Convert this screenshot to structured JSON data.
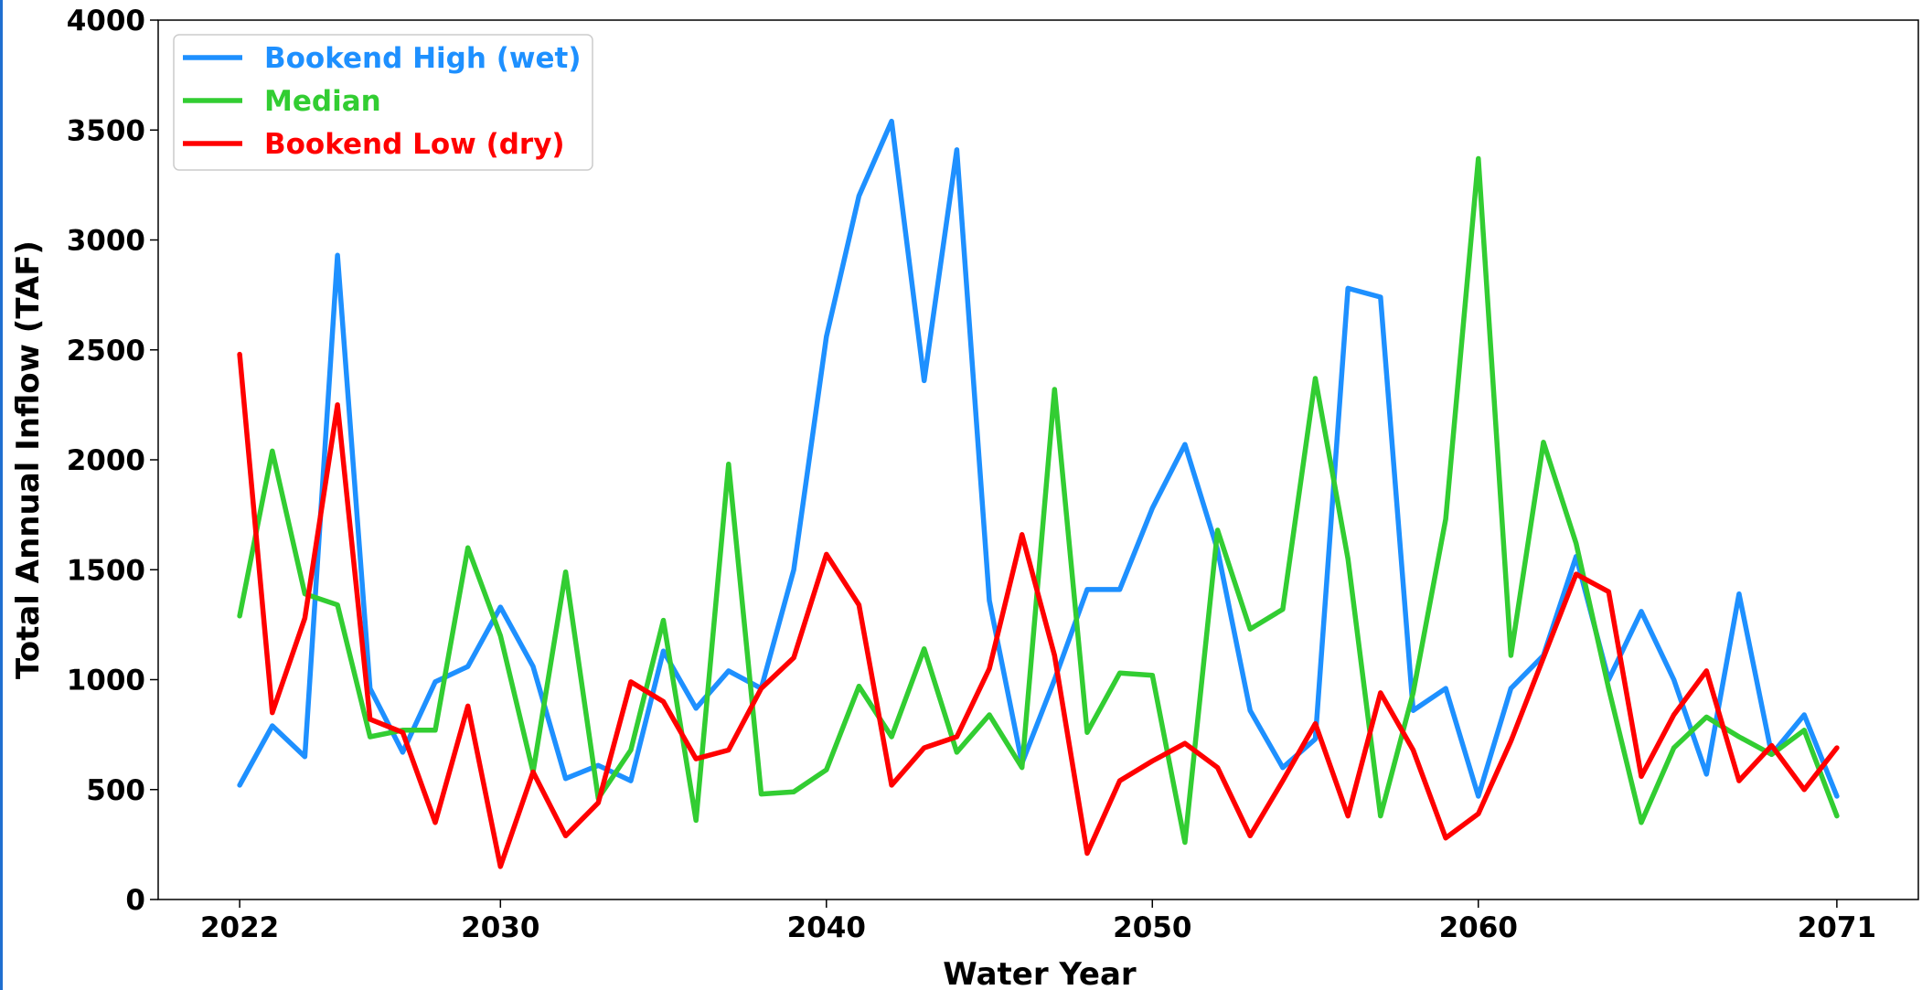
{
  "chart_data": {
    "type": "line",
    "title": "",
    "xlabel": "Water Year",
    "ylabel": "Total Annual Inflow (TAF)",
    "xlim": [
      2019.5,
      2073.5
    ],
    "ylim": [
      0,
      4000
    ],
    "xticks": [
      2022,
      2030,
      2040,
      2050,
      2060,
      2071
    ],
    "yticks": [
      0,
      500,
      1000,
      1500,
      2000,
      2500,
      3000,
      3500,
      4000
    ],
    "grid": false,
    "legend_position": "top-left",
    "x": [
      2022,
      2023,
      2024,
      2025,
      2026,
      2027,
      2028,
      2029,
      2030,
      2031,
      2032,
      2033,
      2034,
      2035,
      2036,
      2037,
      2038,
      2039,
      2040,
      2041,
      2042,
      2043,
      2044,
      2045,
      2046,
      2047,
      2048,
      2049,
      2050,
      2051,
      2052,
      2053,
      2054,
      2055,
      2056,
      2057,
      2058,
      2059,
      2060,
      2061,
      2062,
      2063,
      2064,
      2065,
      2066,
      2067,
      2068,
      2069,
      2070,
      2071
    ],
    "series": [
      {
        "name": "Bookend High (wet)",
        "color": "#1e90ff",
        "values": [
          520,
          790,
          650,
          2930,
          960,
          670,
          990,
          1060,
          1330,
          1060,
          550,
          610,
          540,
          1130,
          870,
          1040,
          960,
          1500,
          2560,
          3200,
          3540,
          2360,
          3410,
          1360,
          620,
          1000,
          1410,
          1410,
          1780,
          2070,
          1590,
          860,
          600,
          730,
          2780,
          2740,
          860,
          960,
          470,
          960,
          1110,
          1560,
          1000,
          1310,
          1000,
          570,
          1390,
          660,
          840,
          470
        ]
      },
      {
        "name": "Median",
        "color": "#32cd32",
        "values": [
          1290,
          2040,
          1390,
          1340,
          740,
          770,
          770,
          1600,
          1200,
          580,
          1490,
          460,
          680,
          1270,
          360,
          1980,
          480,
          490,
          590,
          970,
          740,
          1140,
          670,
          840,
          600,
          2320,
          760,
          1030,
          1020,
          260,
          1680,
          1230,
          1320,
          2370,
          1550,
          380,
          940,
          1730,
          3370,
          1110,
          2080,
          1620,
          960,
          350,
          690,
          830,
          740,
          660,
          770,
          380
        ]
      },
      {
        "name": "Bookend Low (dry)",
        "color": "#ff0000",
        "values": [
          2480,
          850,
          1280,
          2250,
          820,
          760,
          350,
          880,
          150,
          580,
          290,
          440,
          990,
          900,
          640,
          680,
          960,
          1100,
          1570,
          1340,
          520,
          690,
          740,
          1050,
          1660,
          1110,
          210,
          540,
          630,
          710,
          600,
          290,
          540,
          800,
          380,
          940,
          680,
          280,
          390,
          720,
          1100,
          1480,
          1400,
          560,
          840,
          1040,
          540,
          700,
          500,
          690
        ]
      }
    ]
  }
}
